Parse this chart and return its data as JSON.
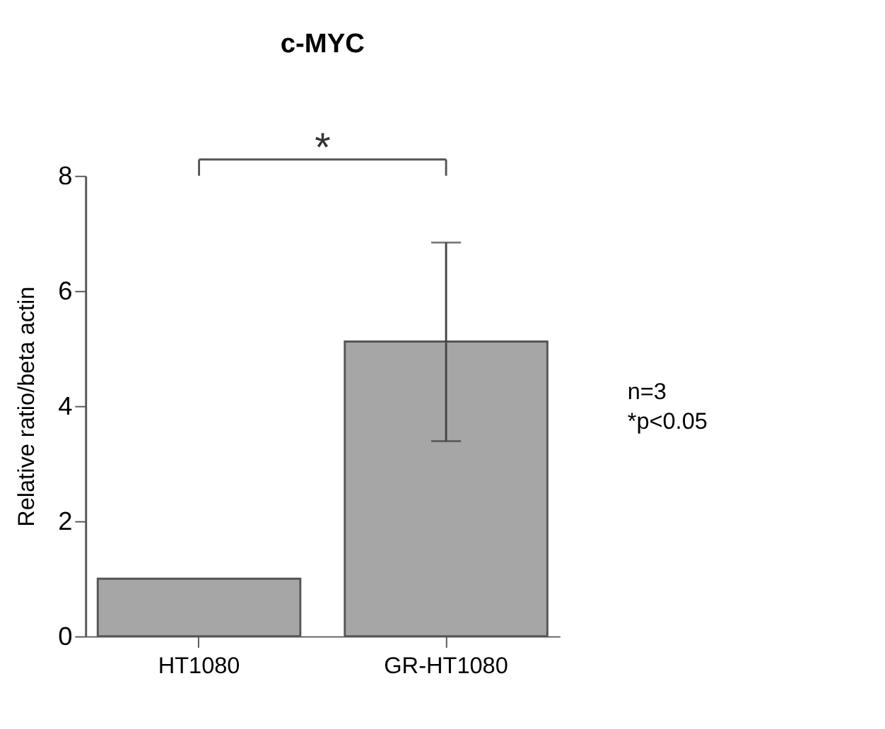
{
  "chart_data": {
    "type": "bar",
    "title": "c-MYC",
    "ylabel": "Relative ratio/beta actin",
    "categories": [
      "HT1080",
      "GR-HT1080"
    ],
    "values": [
      1.0,
      5.12
    ],
    "errors": [
      null,
      [
        3.39,
        6.84
      ]
    ],
    "color": "#a6a6a6",
    "ylim": [
      0,
      8
    ],
    "yticks": [
      0,
      2,
      4,
      6,
      8
    ],
    "grid": false,
    "annotations": [
      "*",
      "n=3",
      "*p<0.05"
    ]
  }
}
